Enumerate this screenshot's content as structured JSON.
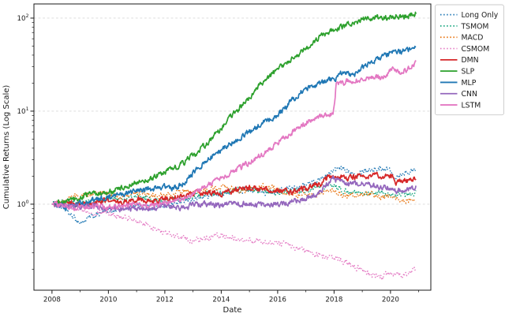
{
  "figure": {
    "background": "#ffffff"
  },
  "chart_data": {
    "type": "line",
    "title": "",
    "xlabel": "Date",
    "ylabel": "Cumulative Returns (Log Scale)",
    "x_scale": "year",
    "y_scale": "log",
    "x_range": [
      2007.36,
      2021.43
    ],
    "y_range": [
      0.119,
      142
    ],
    "x_ticks": [
      2008,
      2010,
      2012,
      2014,
      2016,
      2018,
      2020
    ],
    "x_minor_ticks": [
      2009,
      2011,
      2013,
      2015,
      2017,
      2019,
      2021
    ],
    "y_ticks": [
      1,
      10,
      100
    ],
    "grid": "horizontal-major-dashed",
    "legend_position": "outside-upper-right",
    "series": [
      {
        "name": "Long Only",
        "color": "#1f77b4",
        "style": "dotted",
        "x": [
          2008,
          2008.3,
          2008.7,
          2009.0,
          2009.4,
          2010,
          2010.5,
          2011,
          2011.6,
          2012,
          2012.5,
          2013,
          2013.5,
          2014,
          2014.5,
          2015,
          2015.6,
          2016,
          2016.5,
          2017,
          2017.5,
          2018.0,
          2018.2,
          2018.8,
          2019,
          2019.5,
          2019.9,
          2020.15,
          2020.4,
          2020.9
        ],
        "y": [
          1.0,
          0.95,
          0.75,
          0.62,
          0.73,
          0.85,
          0.88,
          1.0,
          0.9,
          0.98,
          1.03,
          1.12,
          1.22,
          1.3,
          1.38,
          1.45,
          1.33,
          1.38,
          1.5,
          1.62,
          1.85,
          2.3,
          2.4,
          2.15,
          2.3,
          2.4,
          2.45,
          1.95,
          2.15,
          2.3
        ]
      },
      {
        "name": "TSMOM",
        "color": "#029e73",
        "style": "dotted",
        "x": [
          2008,
          2008.5,
          2009,
          2009.5,
          2010,
          2010.5,
          2011,
          2011.5,
          2012,
          2012.5,
          2013,
          2013.5,
          2014,
          2014.5,
          2015,
          2015.5,
          2016,
          2016.5,
          2017,
          2017.5,
          2018.0,
          2018.3,
          2018.7,
          2019,
          2019.5,
          2020,
          2020.3,
          2020.9
        ],
        "y": [
          1.0,
          1.05,
          1.02,
          1.1,
          1.15,
          1.1,
          1.2,
          1.12,
          1.08,
          1.15,
          1.22,
          1.3,
          1.35,
          1.42,
          1.45,
          1.38,
          1.32,
          1.38,
          1.42,
          1.5,
          1.62,
          1.4,
          1.32,
          1.3,
          1.35,
          1.28,
          1.25,
          1.32
        ]
      },
      {
        "name": "MACD",
        "color": "#e8710a",
        "style": "dotted",
        "x": [
          2008,
          2008.4,
          2008.8,
          2009.2,
          2009.6,
          2010,
          2010.5,
          2011,
          2011.4,
          2012,
          2012.5,
          2013,
          2013.5,
          2014,
          2014.3,
          2014.8,
          2015.2,
          2015.6,
          2016,
          2016.5,
          2017,
          2017.5,
          2018,
          2018.4,
          2018.8,
          2019.2,
          2019.6,
          2020,
          2020.4,
          2020.9
        ],
        "y": [
          1.0,
          1.1,
          1.22,
          1.28,
          1.32,
          1.3,
          1.22,
          1.35,
          1.28,
          1.22,
          1.32,
          1.38,
          1.45,
          1.52,
          1.45,
          1.4,
          1.48,
          1.52,
          1.45,
          1.28,
          1.22,
          1.3,
          1.42,
          1.2,
          1.28,
          1.32,
          1.18,
          1.22,
          1.1,
          1.15
        ]
      },
      {
        "name": "CSMOM",
        "color": "#e377c2",
        "style": "dotted",
        "x": [
          2008,
          2008.5,
          2009,
          2009.5,
          2010,
          2010.5,
          2011,
          2011.5,
          2012,
          2012.5,
          2013,
          2013.5,
          2014,
          2014.5,
          2015,
          2015.5,
          2016,
          2016.5,
          2017,
          2017.5,
          2018,
          2018.5,
          2019,
          2019.3,
          2019.7,
          2020,
          2020.4,
          2020.9
        ],
        "y": [
          1.0,
          0.97,
          0.88,
          0.83,
          0.78,
          0.72,
          0.68,
          0.57,
          0.5,
          0.44,
          0.41,
          0.43,
          0.46,
          0.43,
          0.41,
          0.39,
          0.38,
          0.35,
          0.31,
          0.28,
          0.27,
          0.23,
          0.2,
          0.17,
          0.165,
          0.18,
          0.17,
          0.2
        ]
      },
      {
        "name": "DMN",
        "color": "#d62728",
        "style": "solid",
        "x": [
          2008,
          2008.5,
          2009,
          2009.5,
          2010,
          2010.5,
          2011,
          2011.5,
          2012,
          2012.5,
          2013,
          2013.5,
          2014,
          2014.5,
          2015,
          2015.5,
          2016,
          2016.5,
          2017,
          2017.5,
          2017.95,
          2018.1,
          2018.5,
          2019,
          2019.5,
          2020.05,
          2020.2,
          2020.5,
          2020.9
        ],
        "y": [
          1.0,
          1.03,
          0.98,
          1.06,
          1.1,
          1.04,
          1.14,
          1.08,
          1.12,
          1.18,
          1.28,
          1.32,
          1.3,
          1.4,
          1.5,
          1.44,
          1.38,
          1.35,
          1.5,
          1.62,
          2.1,
          1.95,
          1.88,
          2.0,
          2.05,
          1.98,
          1.7,
          1.78,
          1.87
        ]
      },
      {
        "name": "SLP",
        "color": "#2ca02c",
        "style": "solid",
        "x": [
          2008,
          2008.5,
          2009,
          2009.5,
          2010,
          2010.5,
          2011,
          2011.5,
          2012,
          2012.5,
          2013,
          2013.5,
          2014,
          2014.5,
          2015,
          2015.5,
          2016,
          2016.5,
          2017,
          2017.5,
          2018,
          2018.5,
          2019,
          2019.4,
          2019.8,
          2020.1,
          2020.4,
          2020.9
        ],
        "y": [
          1.0,
          1.08,
          1.2,
          1.3,
          1.35,
          1.5,
          1.72,
          1.9,
          2.2,
          2.6,
          3.3,
          4.5,
          6.5,
          10,
          14,
          21,
          28,
          36,
          47,
          62,
          76,
          85,
          97,
          103,
          100,
          105,
          103,
          112
        ]
      },
      {
        "name": "MLP",
        "color": "#1f77b4",
        "style": "solid",
        "x": [
          2008,
          2008.5,
          2009,
          2009.5,
          2010,
          2010.5,
          2011,
          2011.5,
          2012,
          2012.3,
          2012.7,
          2013,
          2013.5,
          2014,
          2014.5,
          2015,
          2015.5,
          2016,
          2016.5,
          2017,
          2017.5,
          2018,
          2018.3,
          2018.7,
          2019,
          2019.5,
          2020,
          2020.4,
          2020.9
        ],
        "y": [
          1.0,
          0.93,
          1.0,
          1.12,
          1.2,
          1.3,
          1.42,
          1.45,
          1.55,
          1.48,
          1.7,
          2.2,
          3.0,
          3.8,
          4.8,
          6.0,
          7.5,
          9.0,
          13,
          17.5,
          20,
          22,
          26,
          24,
          30,
          35,
          42,
          44,
          47
        ]
      },
      {
        "name": "CNN",
        "color": "#9467bd",
        "style": "solid",
        "x": [
          2008,
          2008.5,
          2009,
          2009.5,
          2010,
          2010.5,
          2011,
          2011.5,
          2012,
          2012.5,
          2013,
          2013.5,
          2014,
          2014.5,
          2015,
          2015.5,
          2016,
          2016.5,
          2017,
          2017.5,
          2017.95,
          2018.15,
          2018.5,
          2019,
          2019.5,
          2020.05,
          2020.2,
          2020.6,
          2020.9
        ],
        "y": [
          1.0,
          0.96,
          0.92,
          0.96,
          0.9,
          0.87,
          0.92,
          0.88,
          0.95,
          0.91,
          0.98,
          1.0,
          0.96,
          1.02,
          1.0,
          0.97,
          1.0,
          1.06,
          1.15,
          1.35,
          1.9,
          1.75,
          1.62,
          1.62,
          1.55,
          1.48,
          1.38,
          1.42,
          1.5
        ]
      },
      {
        "name": "LSTM",
        "color": "#e377c2",
        "style": "solid",
        "x": [
          2008,
          2008.5,
          2009,
          2009.5,
          2010,
          2010.5,
          2011,
          2011.5,
          2012,
          2012.5,
          2013,
          2013.5,
          2014,
          2014.5,
          2015,
          2015.5,
          2016,
          2016.5,
          2017,
          2017.5,
          2017.97,
          2018.07,
          2018.5,
          2019,
          2019.3,
          2019.7,
          2020.1,
          2020.35,
          2020.6,
          2020.9
        ],
        "y": [
          1.0,
          0.93,
          0.9,
          0.96,
          0.92,
          0.96,
          1.0,
          0.97,
          1.02,
          1.1,
          1.3,
          1.6,
          1.9,
          2.3,
          2.8,
          3.5,
          4.6,
          5.9,
          7.6,
          8.8,
          9.6,
          19,
          21,
          22,
          23.5,
          22.5,
          28.5,
          26.5,
          28,
          33
        ]
      }
    ]
  },
  "colors": {
    "grid": "#d8d8d8",
    "spine": "#1a1a1a",
    "legend_border": "#c9c9c9",
    "legend_background": "#ffffff"
  }
}
